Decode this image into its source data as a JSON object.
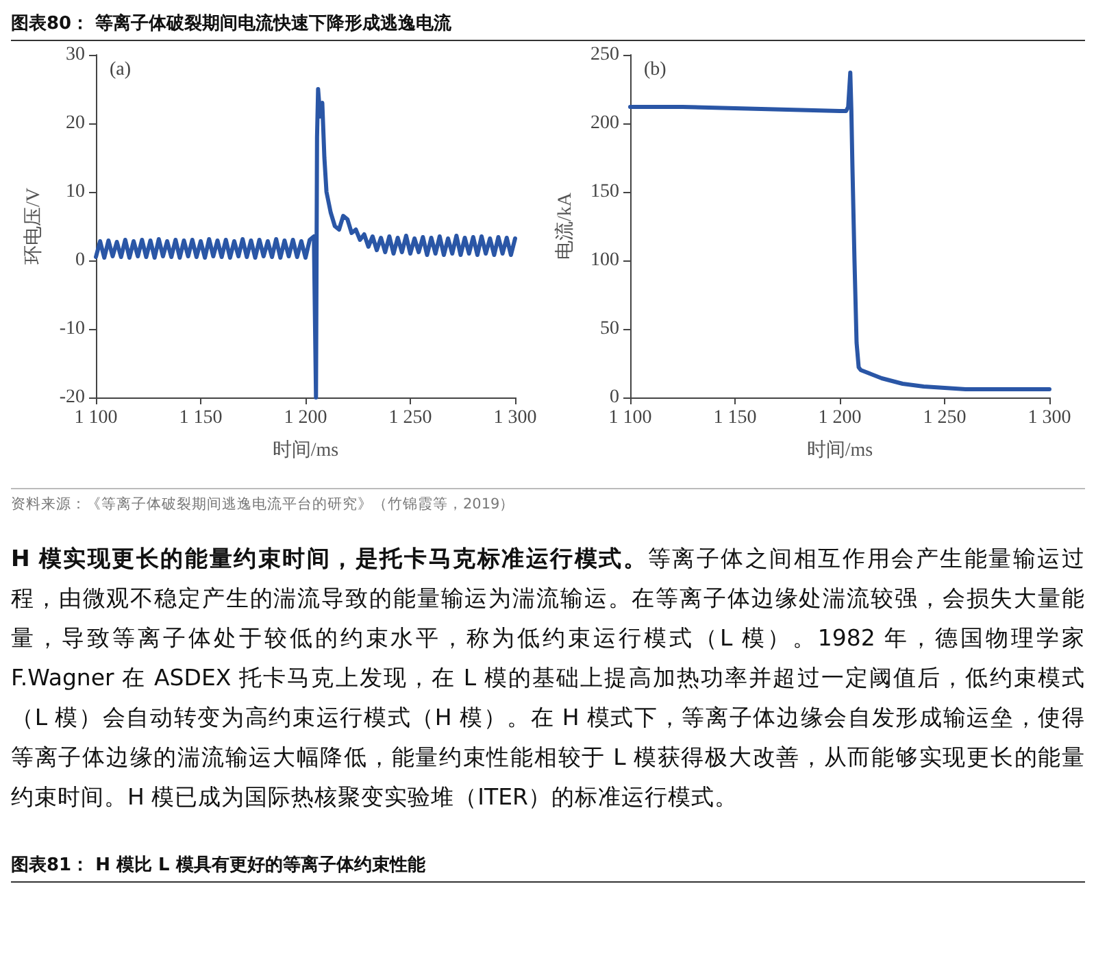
{
  "chart_data": [
    {
      "type": "line",
      "title": "图表80：  等离子体破裂期间电流快速下降形成逃逸电流",
      "xlabel": "时间/ms",
      "ylabel": "环电压/V",
      "annotations": [
        "(a)"
      ],
      "x": [
        1100,
        1102,
        1104,
        1106,
        1108,
        1110,
        1112,
        1114,
        1116,
        1118,
        1120,
        1122,
        1124,
        1126,
        1128,
        1130,
        1132,
        1134,
        1136,
        1138,
        1140,
        1142,
        1144,
        1146,
        1148,
        1150,
        1152,
        1154,
        1156,
        1158,
        1160,
        1162,
        1164,
        1166,
        1168,
        1170,
        1172,
        1174,
        1176,
        1178,
        1180,
        1182,
        1184,
        1186,
        1188,
        1190,
        1192,
        1194,
        1196,
        1198,
        1200,
        1202,
        1204,
        1205,
        1205.5,
        1206,
        1207,
        1208,
        1209,
        1210,
        1212,
        1214,
        1216,
        1218,
        1220,
        1222,
        1224,
        1226,
        1228,
        1230,
        1232,
        1234,
        1236,
        1238,
        1240,
        1242,
        1244,
        1246,
        1248,
        1250,
        1252,
        1254,
        1256,
        1258,
        1260,
        1262,
        1264,
        1266,
        1268,
        1270,
        1272,
        1274,
        1276,
        1278,
        1280,
        1282,
        1284,
        1286,
        1288,
        1290,
        1292,
        1294,
        1296,
        1298,
        1300
      ],
      "series": [
        {
          "color": "#2a56a6",
          "values": [
            0.5,
            2.8,
            0.4,
            2.9,
            0.6,
            2.7,
            0.5,
            3,
            0.4,
            2.8,
            0.6,
            3,
            0.5,
            2.9,
            0.4,
            3.1,
            0.6,
            2.8,
            0.5,
            3,
            0.4,
            2.9,
            0.6,
            3,
            0.5,
            2.8,
            0.4,
            3.1,
            0.6,
            2.9,
            0.5,
            3,
            0.4,
            2.8,
            0.6,
            3.1,
            0.5,
            2.9,
            0.4,
            3,
            0.6,
            2.8,
            0.5,
            3.1,
            0.4,
            2.9,
            0.6,
            3,
            0.5,
            2.8,
            0.4,
            3,
            3.5,
            -20,
            18,
            25,
            21,
            23,
            15,
            10,
            7,
            5,
            4.5,
            6.5,
            6,
            4,
            4.5,
            3,
            3.8,
            2,
            3.5,
            1.5,
            3.3,
            1.2,
            3.5,
            1,
            3.3,
            1.2,
            3.6,
            1,
            3.2,
            1.2,
            3.4,
            0.8,
            3.3,
            1,
            3.5,
            0.8,
            3.2,
            1,
            3.6,
            0.8,
            3.3,
            1,
            3.4,
            0.8,
            3.5,
            1,
            3.2,
            0.8,
            3.4,
            1,
            3.3,
            0.8,
            3.2
          ]
        }
      ],
      "xlim": [
        1100,
        1300
      ],
      "xticks": [
        {
          "value": 1100,
          "label": "1 100"
        },
        {
          "value": 1150,
          "label": "1 150"
        },
        {
          "value": 1200,
          "label": "1 200"
        },
        {
          "value": 1250,
          "label": "1 250"
        },
        {
          "value": 1300,
          "label": "1 300"
        }
      ],
      "ylim": [
        -20,
        30
      ],
      "yticks": [
        -20,
        -10,
        0,
        10,
        20,
        30
      ],
      "grid": false,
      "marker": "none",
      "line_style": "solid"
    },
    {
      "type": "line",
      "xlabel": "时间/ms",
      "ylabel": "电流/kA",
      "annotations": [
        "(b)",
        "资料来源：《等离子体破裂期间逃逸电流平台的研究》（竹锦霞等，2019）"
      ],
      "x": [
        1100,
        1125,
        1150,
        1175,
        1200,
        1203,
        1204,
        1205,
        1205.5,
        1206,
        1207,
        1208,
        1209,
        1210,
        1215,
        1220,
        1230,
        1240,
        1250,
        1260,
        1280,
        1300
      ],
      "series": [
        {
          "color": "#2a56a6",
          "values": [
            212,
            212,
            211,
            210,
            209,
            209,
            212,
            237,
            210,
            170,
            100,
            40,
            22,
            20,
            17,
            14,
            10,
            8,
            7,
            6,
            6,
            6
          ]
        }
      ],
      "xlim": [
        1100,
        1300
      ],
      "xticks": [
        {
          "value": 1100,
          "label": "1 100"
        },
        {
          "value": 1150,
          "label": "1 150"
        },
        {
          "value": 1200,
          "label": "1 200"
        },
        {
          "value": 1250,
          "label": "1 250"
        },
        {
          "value": 1300,
          "label": "1 300"
        }
      ],
      "ylim": [
        0,
        250
      ],
      "yticks": [
        0,
        50,
        100,
        150,
        200,
        250
      ],
      "grid": false,
      "marker": "none",
      "line_style": "solid"
    },
    {
      "type": "other",
      "title": "图表81：  H 模比 L 模具有更好的等离子体约束性能",
      "annotations": [
        "H 模实现更长的能量约束时间，是托卡马克标准运行模式。",
        "等离子体之间相互作用会产生能量输运过程，由微观不稳定产生的湍流导致的能量输运为湍流输运。在等离子体边缘处湍流较强，会损失大量能量，导致等离子体处于较低的约束水平，称为低约束运行模式（L 模）。1982 年，德国物理学家 F.Wagner 在 ASDEX 托卡马克上发现，在 L 模的基础上提高加热功率并超过一定阈值后，低约束模式（L 模）会自动转变为高约束运行模式（H 模）。在 H 模式下，等离子体边缘会自发形成输运垒，使得等离子体边缘的湍流输运大幅降低，能量约束性能相较于 L 模获得极大改善，从而能够实现更长的能量约束时间。H 模已成为国际热核聚变实验堆（ITER）的标准运行模式。"
      ]
    }
  ]
}
